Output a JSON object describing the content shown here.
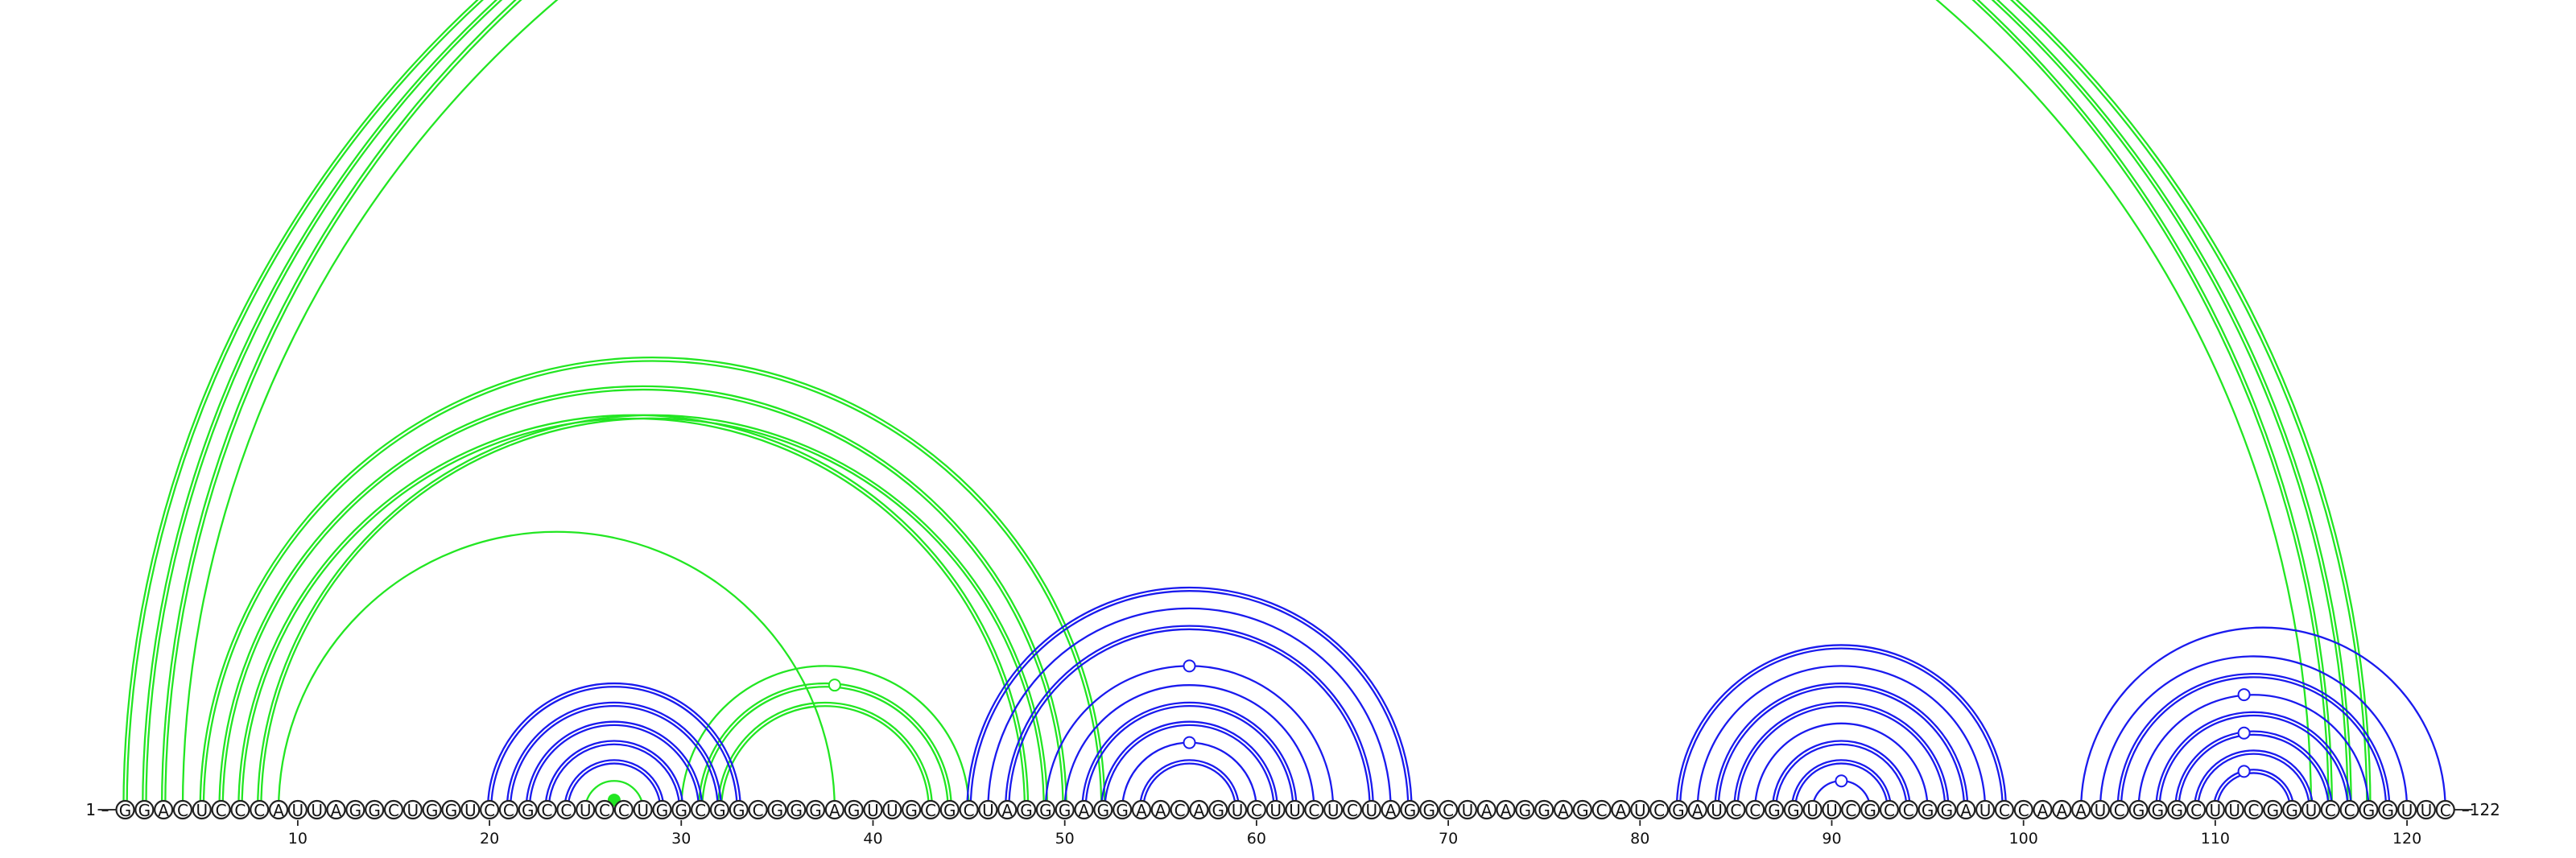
{
  "sequence": "GGACUCCCAUUAGGCUGGUCCGCCUCCUGGCGGCGGGAGUUGCGCUAGGGAGGAACAGUCUUCUCUAGGCUAAGGAGCAUCGAUCCGGUUCGCCGGAUCCAAAUCGGGCUUCGGUCCGGUUC",
  "labels": {
    "start": "1 –",
    "end": "–122"
  },
  "colors": {
    "nested": "#1a1aee",
    "crossing": "#22e622"
  },
  "chart_data": {
    "type": "arc-diagram",
    "length": 122,
    "ticks": [
      10,
      20,
      30,
      40,
      50,
      60,
      70,
      80,
      90,
      100,
      110,
      120
    ],
    "arcs": [
      {
        "i": 1,
        "j": 116,
        "c": "crossing",
        "d": true
      },
      {
        "i": 2,
        "j": 117,
        "c": "crossing",
        "d": true
      },
      {
        "i": 3,
        "j": 118,
        "c": "crossing",
        "d": true
      },
      {
        "i": 4,
        "j": 115,
        "c": "crossing",
        "d": false
      },
      {
        "i": 5,
        "j": 52,
        "c": "crossing",
        "d": true
      },
      {
        "i": 6,
        "j": 50,
        "c": "crossing",
        "d": true
      },
      {
        "i": 7,
        "j": 48,
        "c": "crossing",
        "d": true
      },
      {
        "i": 8,
        "j": 49,
        "c": "crossing",
        "d": true
      },
      {
        "i": 9,
        "j": 38,
        "c": "crossing",
        "d": false
      },
      {
        "i": 30,
        "j": 45,
        "c": "crossing",
        "d": false
      },
      {
        "i": 31,
        "j": 44,
        "c": "crossing",
        "d": true
      },
      {
        "i": 32,
        "j": 43,
        "c": "crossing",
        "d": true
      },
      {
        "i": 25,
        "j": 28,
        "c": "crossing",
        "d": false
      },
      {
        "i": 26,
        "j": 27,
        "c": "crossing",
        "d": false
      },
      {
        "i": 20,
        "j": 33,
        "c": "nested",
        "d": true
      },
      {
        "i": 21,
        "j": 32,
        "c": "nested",
        "d": true
      },
      {
        "i": 22,
        "j": 31,
        "c": "nested",
        "d": true
      },
      {
        "i": 23,
        "j": 30,
        "c": "nested",
        "d": true
      },
      {
        "i": 24,
        "j": 29,
        "c": "nested",
        "d": true
      },
      {
        "i": 45,
        "j": 68,
        "c": "nested",
        "d": true
      },
      {
        "i": 46,
        "j": 67,
        "c": "nested",
        "d": false
      },
      {
        "i": 47,
        "j": 66,
        "c": "nested",
        "d": true
      },
      {
        "i": 49,
        "j": 64,
        "c": "nested",
        "d": false
      },
      {
        "i": 50,
        "j": 63,
        "c": "nested",
        "d": false
      },
      {
        "i": 51,
        "j": 62,
        "c": "nested",
        "d": true
      },
      {
        "i": 52,
        "j": 61,
        "c": "nested",
        "d": true
      },
      {
        "i": 53,
        "j": 60,
        "c": "nested",
        "d": false
      },
      {
        "i": 54,
        "j": 59,
        "c": "nested",
        "d": true
      },
      {
        "i": 82,
        "j": 99,
        "c": "nested",
        "d": true
      },
      {
        "i": 83,
        "j": 98,
        "c": "nested",
        "d": false
      },
      {
        "i": 84,
        "j": 97,
        "c": "nested",
        "d": true
      },
      {
        "i": 85,
        "j": 96,
        "c": "nested",
        "d": true
      },
      {
        "i": 86,
        "j": 95,
        "c": "nested",
        "d": false
      },
      {
        "i": 87,
        "j": 94,
        "c": "nested",
        "d": true
      },
      {
        "i": 88,
        "j": 93,
        "c": "nested",
        "d": true
      },
      {
        "i": 89,
        "j": 92,
        "c": "nested",
        "d": false
      },
      {
        "i": 103,
        "j": 122,
        "c": "nested",
        "d": false
      },
      {
        "i": 104,
        "j": 120,
        "c": "nested",
        "d": false
      },
      {
        "i": 105,
        "j": 119,
        "c": "nested",
        "d": true
      },
      {
        "i": 106,
        "j": 118,
        "c": "nested",
        "d": false
      },
      {
        "i": 107,
        "j": 117,
        "c": "nested",
        "d": true
      },
      {
        "i": 108,
        "j": 116,
        "c": "nested",
        "d": true
      },
      {
        "i": 109,
        "j": 115,
        "c": "nested",
        "d": true
      },
      {
        "i": 110,
        "j": 114,
        "c": "nested",
        "d": true
      }
    ],
    "markers": [
      {
        "pos": 26.5,
        "arc": [
          26,
          27
        ],
        "filled": true,
        "c": "crossing"
      },
      {
        "pos": 38,
        "arc": [
          31,
          44
        ],
        "filled": false,
        "c": "crossing"
      },
      {
        "pos": 56.5,
        "arc": [
          49,
          64
        ],
        "filled": false,
        "c": "nested"
      },
      {
        "pos": 56.5,
        "arc": [
          53,
          60
        ],
        "filled": false,
        "c": "nested"
      },
      {
        "pos": 90.5,
        "arc": [
          89,
          92
        ],
        "filled": false,
        "c": "nested"
      },
      {
        "pos": 111.5,
        "arc": [
          106,
          118
        ],
        "filled": false,
        "c": "nested"
      },
      {
        "pos": 111.5,
        "arc": [
          108,
          116
        ],
        "filled": false,
        "c": "nested"
      },
      {
        "pos": 111.5,
        "arc": [
          110,
          114
        ],
        "filled": false,
        "c": "nested"
      }
    ]
  }
}
